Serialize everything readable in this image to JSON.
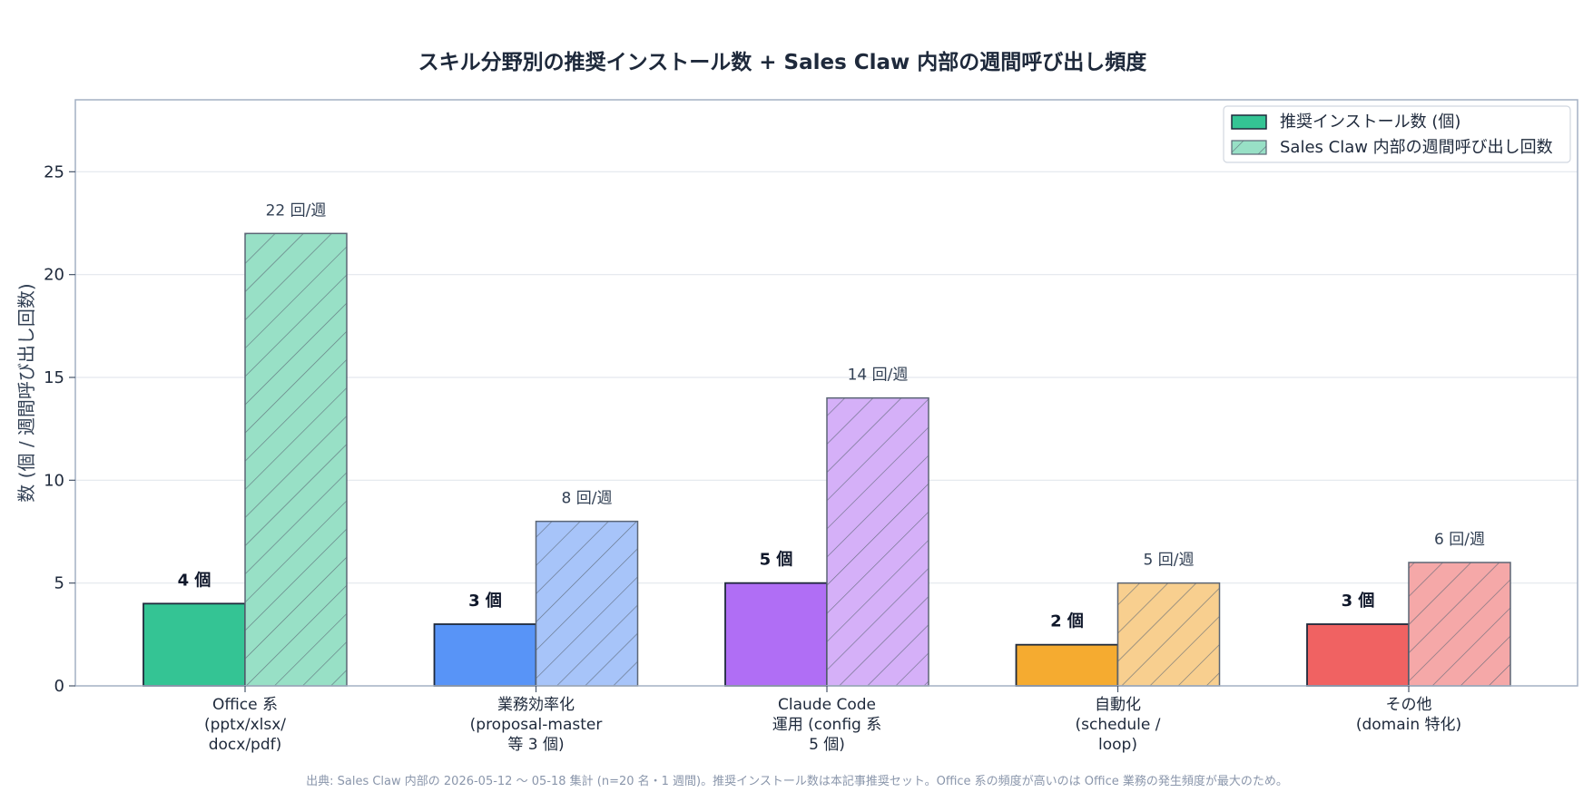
{
  "chart_data": {
    "type": "bar",
    "title": "スキル分野別の推奨インストール数 + Sales Claw 内部の週間呼び出し頻度",
    "ylabel": "数 (個 / 週間呼び出し回数)",
    "xlabel": "",
    "ylim": [
      0,
      28.5
    ],
    "yticks": [
      0,
      5,
      10,
      15,
      20,
      25
    ],
    "grid": true,
    "legend_position": "top-right",
    "categories": [
      [
        "Office 系",
        "(pptx/xlsx/",
        "docx/pdf)"
      ],
      [
        "業務効率化",
        "(proposal-master",
        "等 3 個)"
      ],
      [
        "Claude Code",
        "運用 (config 系",
        "5 個)"
      ],
      [
        "自動化",
        "(schedule /",
        "loop)"
      ],
      [
        "その他",
        "(domain 特化)"
      ]
    ],
    "colors": [
      "#34c494",
      "#5894f7",
      "#b06ef5",
      "#f5ab30",
      "#f06262"
    ],
    "light_colors": [
      "#98e0c6",
      "#a7c4f9",
      "#d5b0f8",
      "#f8cf8f",
      "#f5a8a8"
    ],
    "series": [
      {
        "name": "推奨インストール数 (個)",
        "values": [
          4,
          3,
          5,
          2,
          3
        ],
        "labels": [
          "4 個",
          "3 個",
          "5 個",
          "2 個",
          "3 個"
        ]
      },
      {
        "name": "Sales Claw 内部の週間呼び出し回数",
        "values": [
          22,
          8,
          14,
          5,
          6
        ],
        "labels": [
          "22 回/週",
          "8 回/週",
          "14 回/週",
          "5 回/週",
          "6 回/週"
        ]
      }
    ],
    "source_note": "出典: Sales Claw 内部の 2026-05-12 〜 05-18 集計 (n=20 名・1 週間)。推奨インストール数は本記事推奨セット。Office 系の頻度が高いのは Office 業務の発生頻度が最大のため。"
  }
}
